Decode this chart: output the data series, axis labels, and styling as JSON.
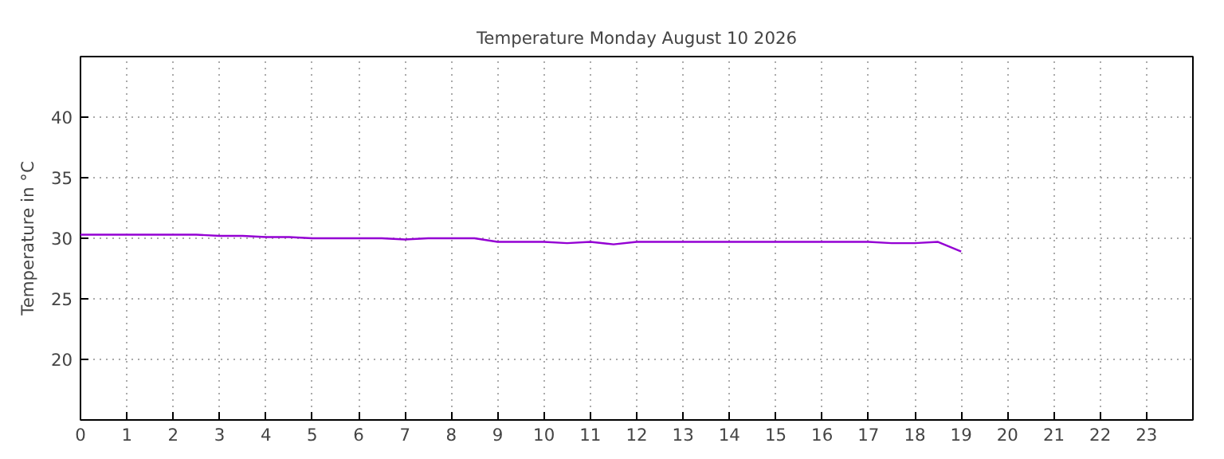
{
  "chart_data": {
    "type": "line",
    "title": "Temperature Monday August 10 2026",
    "ylabel": "Temperature in °C",
    "x": [
      0,
      0.5,
      1,
      1.5,
      2,
      2.5,
      3,
      3.5,
      4,
      4.5,
      5,
      5.5,
      6,
      6.5,
      7,
      7.5,
      8,
      8.5,
      9,
      9.5,
      10,
      10.5,
      11,
      11.5,
      12,
      12.5,
      13,
      13.5,
      14,
      14.5,
      15,
      15.5,
      16,
      16.5,
      17,
      17.5,
      18,
      18.5,
      19
    ],
    "series": [
      {
        "color": "#9400d3",
        "values": [
          30.3,
          30.3,
          30.3,
          30.3,
          30.3,
          30.3,
          30.2,
          30.2,
          30.1,
          30.1,
          30.0,
          30.0,
          30.0,
          30.0,
          29.9,
          30.0,
          30.0,
          30.0,
          29.7,
          29.7,
          29.7,
          29.6,
          29.7,
          29.5,
          29.7,
          29.7,
          29.7,
          29.7,
          29.7,
          29.7,
          29.7,
          29.7,
          29.7,
          29.7,
          29.7,
          29.6,
          29.6,
          29.7,
          28.9
        ]
      }
    ],
    "xlim": [
      0,
      24
    ],
    "xticks": [
      0,
      1,
      2,
      3,
      4,
      5,
      6,
      7,
      8,
      9,
      10,
      11,
      12,
      13,
      14,
      15,
      16,
      17,
      18,
      19,
      20,
      21,
      22,
      23
    ],
    "ylim": [
      15,
      45
    ],
    "yticks": [
      20,
      25,
      30,
      35,
      40
    ],
    "grid": true,
    "marker": "none",
    "line_style": "solid"
  }
}
